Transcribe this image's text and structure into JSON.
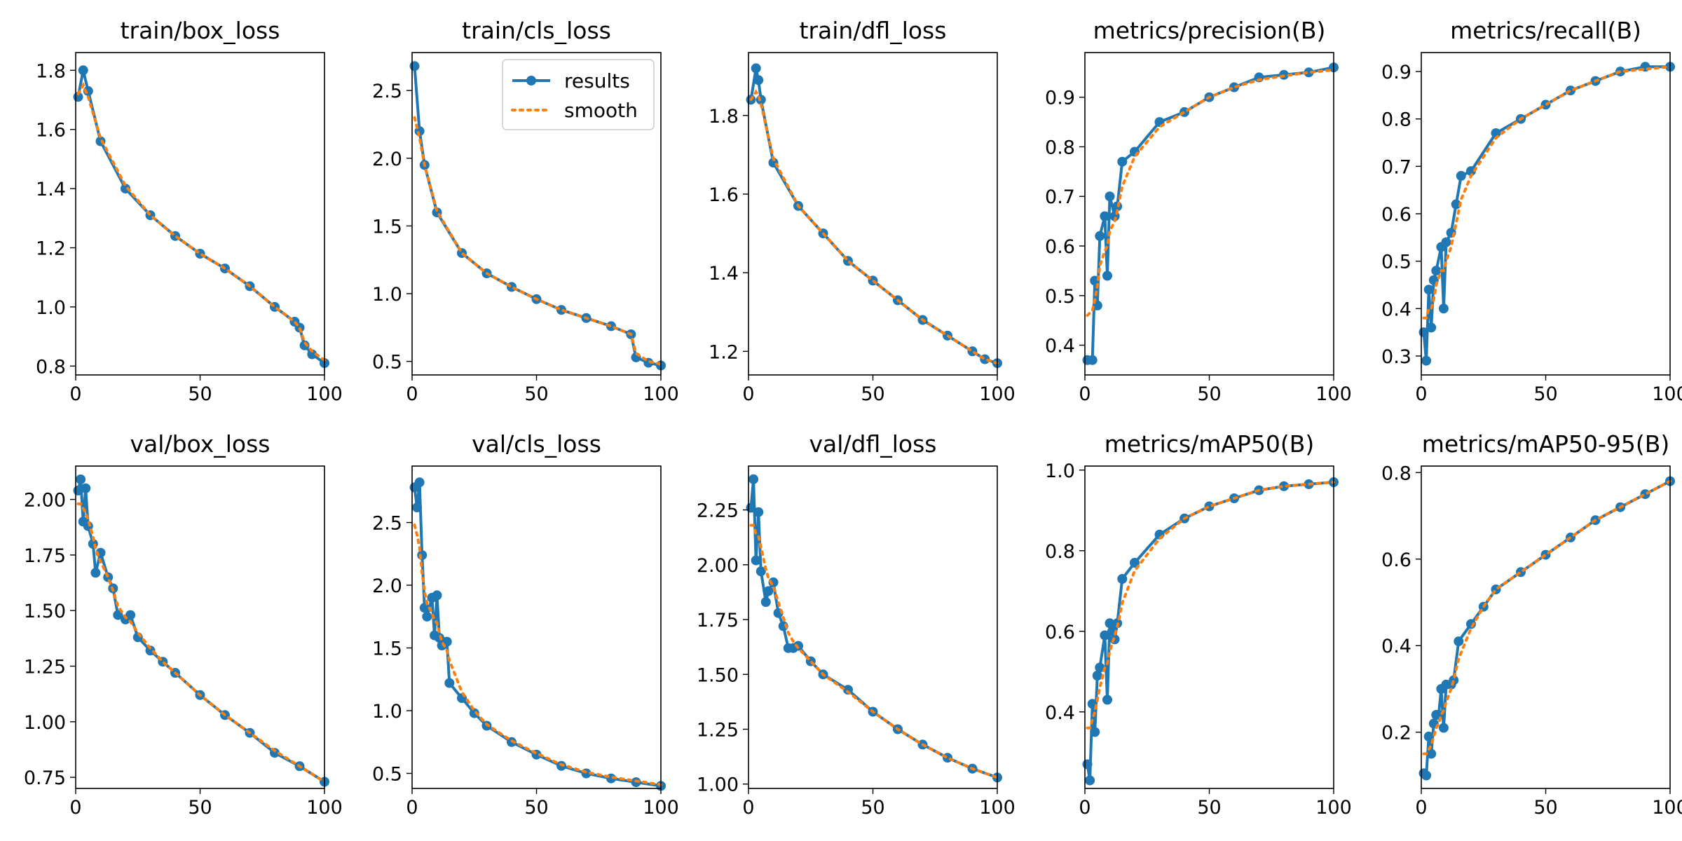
{
  "colors": {
    "results": "#1f77b4",
    "smooth": "#ff7f0e"
  },
  "legend": {
    "results_label": "results",
    "smooth_label": "smooth",
    "panel_index": 1,
    "placement": "upper right"
  },
  "chart_data": [
    {
      "type": "line",
      "title": "train/box_loss",
      "xlabel": "",
      "ylabel": "",
      "xlim": [
        0,
        100
      ],
      "ylim": [
        0.77,
        1.86
      ],
      "xticks": [
        0,
        50,
        100
      ],
      "xtick_labels": [
        "0",
        "50",
        "100"
      ],
      "yticks": [
        0.8,
        1.0,
        1.2,
        1.4,
        1.6,
        1.8
      ],
      "ytick_labels": [
        "0.8",
        "1.0",
        "1.2",
        "1.4",
        "1.6",
        "1.8"
      ],
      "x": [
        1,
        3,
        5,
        10,
        20,
        30,
        40,
        50,
        60,
        70,
        80,
        88,
        90,
        92,
        95,
        100
      ],
      "series": [
        {
          "name": "results",
          "values": [
            1.71,
            1.8,
            1.73,
            1.56,
            1.4,
            1.31,
            1.24,
            1.18,
            1.13,
            1.07,
            1.0,
            0.95,
            0.93,
            0.87,
            0.84,
            0.81
          ]
        },
        {
          "name": "smooth",
          "values": [
            1.72,
            1.75,
            1.71,
            1.57,
            1.41,
            1.31,
            1.24,
            1.18,
            1.13,
            1.07,
            1.0,
            0.95,
            0.93,
            0.88,
            0.85,
            0.82
          ]
        }
      ]
    },
    {
      "type": "line",
      "title": "train/cls_loss",
      "xlabel": "",
      "ylabel": "",
      "xlim": [
        0,
        100
      ],
      "ylim": [
        0.4,
        2.78
      ],
      "xticks": [
        0,
        50,
        100
      ],
      "xtick_labels": [
        "0",
        "50",
        "100"
      ],
      "yticks": [
        0.5,
        1.0,
        1.5,
        2.0,
        2.5
      ],
      "ytick_labels": [
        "0.5",
        "1.0",
        "1.5",
        "2.0",
        "2.5"
      ],
      "x": [
        1,
        3,
        5,
        10,
        20,
        30,
        40,
        50,
        60,
        70,
        80,
        88,
        90,
        95,
        100
      ],
      "series": [
        {
          "name": "results",
          "values": [
            2.68,
            2.2,
            1.95,
            1.6,
            1.3,
            1.15,
            1.05,
            0.96,
            0.88,
            0.82,
            0.76,
            0.7,
            0.53,
            0.49,
            0.47
          ]
        },
        {
          "name": "smooth",
          "values": [
            2.3,
            2.15,
            1.95,
            1.61,
            1.3,
            1.15,
            1.05,
            0.96,
            0.88,
            0.82,
            0.76,
            0.7,
            0.56,
            0.5,
            0.48
          ]
        }
      ]
    },
    {
      "type": "line",
      "title": "train/dfl_loss",
      "xlabel": "",
      "ylabel": "",
      "xlim": [
        0,
        100
      ],
      "ylim": [
        1.14,
        1.96
      ],
      "xticks": [
        0,
        50,
        100
      ],
      "xtick_labels": [
        "0",
        "50",
        "100"
      ],
      "yticks": [
        1.2,
        1.4,
        1.6,
        1.8
      ],
      "ytick_labels": [
        "1.2",
        "1.4",
        "1.6",
        "1.8"
      ],
      "x": [
        1,
        3,
        4,
        5,
        10,
        20,
        30,
        40,
        50,
        60,
        70,
        80,
        90,
        95,
        100
      ],
      "series": [
        {
          "name": "results",
          "values": [
            1.84,
            1.92,
            1.89,
            1.84,
            1.68,
            1.57,
            1.5,
            1.43,
            1.38,
            1.33,
            1.28,
            1.24,
            1.2,
            1.18,
            1.17
          ]
        },
        {
          "name": "smooth",
          "values": [
            1.84,
            1.86,
            1.85,
            1.83,
            1.69,
            1.57,
            1.5,
            1.43,
            1.38,
            1.33,
            1.28,
            1.24,
            1.2,
            1.18,
            1.17
          ]
        }
      ]
    },
    {
      "type": "line",
      "title": "metrics/precision(B)",
      "xlabel": "",
      "ylabel": "",
      "xlim": [
        0,
        100
      ],
      "ylim": [
        0.34,
        0.99
      ],
      "xticks": [
        0,
        50,
        100
      ],
      "xtick_labels": [
        "0",
        "50",
        "100"
      ],
      "yticks": [
        0.4,
        0.5,
        0.6,
        0.7,
        0.8,
        0.9
      ],
      "ytick_labels": [
        "0.4",
        "0.5",
        "0.6",
        "0.7",
        "0.8",
        "0.9"
      ],
      "x": [
        1,
        3,
        4,
        5,
        6,
        8,
        9,
        10,
        12,
        13,
        15,
        20,
        30,
        40,
        50,
        60,
        70,
        80,
        90,
        100
      ],
      "series": [
        {
          "name": "results",
          "values": [
            0.37,
            0.37,
            0.53,
            0.48,
            0.62,
            0.66,
            0.54,
            0.7,
            0.66,
            0.68,
            0.77,
            0.79,
            0.85,
            0.87,
            0.9,
            0.92,
            0.94,
            0.945,
            0.95,
            0.96
          ]
        },
        {
          "name": "smooth",
          "values": [
            0.46,
            0.47,
            0.49,
            0.52,
            0.56,
            0.59,
            0.6,
            0.63,
            0.65,
            0.67,
            0.72,
            0.78,
            0.84,
            0.87,
            0.9,
            0.92,
            0.935,
            0.943,
            0.95,
            0.955
          ]
        }
      ]
    },
    {
      "type": "line",
      "title": "metrics/recall(B)",
      "xlabel": "",
      "ylabel": "",
      "xlim": [
        0,
        100
      ],
      "ylim": [
        0.26,
        0.94
      ],
      "xticks": [
        0,
        50,
        100
      ],
      "xtick_labels": [
        "0",
        "50",
        "100"
      ],
      "yticks": [
        0.3,
        0.4,
        0.5,
        0.6,
        0.7,
        0.8,
        0.9
      ],
      "ytick_labels": [
        "0.3",
        "0.4",
        "0.5",
        "0.6",
        "0.7",
        "0.8",
        "0.9"
      ],
      "x": [
        1,
        2,
        3,
        4,
        5,
        6,
        8,
        9,
        10,
        12,
        14,
        16,
        20,
        30,
        40,
        50,
        60,
        70,
        80,
        90,
        100
      ],
      "series": [
        {
          "name": "results",
          "values": [
            0.35,
            0.29,
            0.44,
            0.36,
            0.46,
            0.48,
            0.53,
            0.4,
            0.54,
            0.56,
            0.62,
            0.68,
            0.69,
            0.77,
            0.8,
            0.83,
            0.86,
            0.88,
            0.9,
            0.91,
            0.91
          ]
        },
        {
          "name": "smooth",
          "values": [
            0.38,
            0.38,
            0.4,
            0.4,
            0.42,
            0.45,
            0.48,
            0.48,
            0.5,
            0.53,
            0.58,
            0.63,
            0.68,
            0.76,
            0.8,
            0.83,
            0.86,
            0.88,
            0.9,
            0.905,
            0.91
          ]
        }
      ]
    },
    {
      "type": "line",
      "title": "val/box_loss",
      "xlabel": "",
      "ylabel": "",
      "xlim": [
        0,
        100
      ],
      "ylim": [
        0.7,
        2.15
      ],
      "xticks": [
        0,
        50,
        100
      ],
      "xtick_labels": [
        "0",
        "50",
        "100"
      ],
      "yticks": [
        0.75,
        1.0,
        1.25,
        1.5,
        1.75,
        2.0
      ],
      "ytick_labels": [
        "0.75",
        "1.00",
        "1.25",
        "1.50",
        "1.75",
        "2.00"
      ],
      "x": [
        1,
        2,
        3,
        4,
        5,
        7,
        8,
        10,
        13,
        15,
        17,
        20,
        22,
        25,
        30,
        35,
        40,
        50,
        60,
        70,
        80,
        90,
        100
      ],
      "series": [
        {
          "name": "results",
          "values": [
            2.04,
            2.09,
            1.9,
            2.05,
            1.88,
            1.8,
            1.67,
            1.76,
            1.65,
            1.6,
            1.48,
            1.46,
            1.48,
            1.38,
            1.32,
            1.27,
            1.22,
            1.12,
            1.03,
            0.95,
            0.86,
            0.8,
            0.73
          ]
        },
        {
          "name": "smooth",
          "values": [
            1.98,
            1.98,
            1.96,
            1.94,
            1.91,
            1.83,
            1.78,
            1.72,
            1.65,
            1.59,
            1.52,
            1.47,
            1.45,
            1.4,
            1.33,
            1.27,
            1.22,
            1.12,
            1.03,
            0.95,
            0.87,
            0.8,
            0.73
          ]
        }
      ]
    },
    {
      "type": "line",
      "title": "val/cls_loss",
      "xlabel": "",
      "ylabel": "",
      "xlim": [
        0,
        100
      ],
      "ylim": [
        0.38,
        2.95
      ],
      "xticks": [
        0,
        50,
        100
      ],
      "xtick_labels": [
        "0",
        "50",
        "100"
      ],
      "yticks": [
        0.5,
        1.0,
        1.5,
        2.0,
        2.5
      ],
      "ytick_labels": [
        "0.5",
        "1.0",
        "1.5",
        "2.0",
        "2.5"
      ],
      "x": [
        1,
        2,
        3,
        4,
        5,
        6,
        8,
        9,
        10,
        11,
        12,
        14,
        15,
        20,
        25,
        30,
        40,
        50,
        60,
        70,
        80,
        90,
        100
      ],
      "series": [
        {
          "name": "results",
          "values": [
            2.78,
            2.62,
            2.82,
            2.24,
            1.82,
            1.75,
            1.9,
            1.6,
            1.92,
            1.58,
            1.52,
            1.55,
            1.22,
            1.1,
            0.98,
            0.88,
            0.75,
            0.65,
            0.56,
            0.5,
            0.46,
            0.43,
            0.4
          ]
        },
        {
          "name": "smooth",
          "values": [
            2.48,
            2.4,
            2.3,
            2.1,
            1.95,
            1.85,
            1.78,
            1.72,
            1.7,
            1.62,
            1.55,
            1.48,
            1.4,
            1.15,
            1.0,
            0.89,
            0.76,
            0.66,
            0.57,
            0.51,
            0.47,
            0.44,
            0.41
          ]
        }
      ]
    },
    {
      "type": "line",
      "title": "val/dfl_loss",
      "xlabel": "",
      "ylabel": "",
      "xlim": [
        0,
        100
      ],
      "ylim": [
        0.98,
        2.45
      ],
      "xticks": [
        0,
        50,
        100
      ],
      "xtick_labels": [
        "0",
        "50",
        "100"
      ],
      "yticks": [
        1.0,
        1.25,
        1.5,
        1.75,
        2.0,
        2.25
      ],
      "ytick_labels": [
        "1.00",
        "1.25",
        "1.50",
        "1.75",
        "2.00",
        "2.25"
      ],
      "x": [
        1,
        2,
        3,
        4,
        5,
        7,
        8,
        10,
        12,
        14,
        16,
        18,
        20,
        25,
        30,
        40,
        50,
        60,
        70,
        80,
        90,
        100
      ],
      "series": [
        {
          "name": "results",
          "values": [
            2.26,
            2.39,
            2.02,
            2.24,
            1.97,
            1.83,
            1.88,
            1.92,
            1.78,
            1.72,
            1.62,
            1.62,
            1.63,
            1.56,
            1.5,
            1.43,
            1.33,
            1.25,
            1.18,
            1.12,
            1.07,
            1.03
          ]
        },
        {
          "name": "smooth",
          "values": [
            2.18,
            2.18,
            2.14,
            2.13,
            2.08,
            1.98,
            1.94,
            1.9,
            1.83,
            1.76,
            1.69,
            1.65,
            1.62,
            1.56,
            1.5,
            1.42,
            1.33,
            1.25,
            1.18,
            1.12,
            1.07,
            1.03
          ]
        }
      ]
    },
    {
      "type": "line",
      "title": "metrics/mAP50(B)",
      "xlabel": "",
      "ylabel": "",
      "xlim": [
        0,
        100
      ],
      "ylim": [
        0.21,
        1.01
      ],
      "xticks": [
        0,
        50,
        100
      ],
      "xtick_labels": [
        "0",
        "50",
        "100"
      ],
      "yticks": [
        0.4,
        0.6,
        0.8,
        1.0
      ],
      "ytick_labels": [
        "0.4",
        "0.6",
        "0.8",
        "1.0"
      ],
      "x": [
        1,
        2,
        3,
        4,
        5,
        6,
        8,
        9,
        10,
        11,
        12,
        13,
        15,
        20,
        30,
        40,
        50,
        60,
        70,
        80,
        90,
        100
      ],
      "series": [
        {
          "name": "results",
          "values": [
            0.27,
            0.23,
            0.42,
            0.35,
            0.49,
            0.51,
            0.59,
            0.43,
            0.62,
            0.6,
            0.58,
            0.62,
            0.73,
            0.77,
            0.84,
            0.88,
            0.91,
            0.93,
            0.95,
            0.96,
            0.965,
            0.97
          ]
        },
        {
          "name": "smooth",
          "values": [
            0.36,
            0.36,
            0.38,
            0.4,
            0.43,
            0.46,
            0.51,
            0.52,
            0.55,
            0.57,
            0.59,
            0.61,
            0.67,
            0.75,
            0.83,
            0.88,
            0.91,
            0.93,
            0.95,
            0.96,
            0.965,
            0.97
          ]
        }
      ]
    },
    {
      "type": "line",
      "title": "metrics/mAP50-95(B)",
      "xlabel": "",
      "ylabel": "",
      "xlim": [
        0,
        100
      ],
      "ylim": [
        0.07,
        0.815
      ],
      "xticks": [
        0,
        50,
        100
      ],
      "xtick_labels": [
        "0",
        "50",
        "100"
      ],
      "yticks": [
        0.2,
        0.4,
        0.6,
        0.8
      ],
      "ytick_labels": [
        "0.2",
        "0.4",
        "0.6",
        "0.8"
      ],
      "x": [
        1,
        2,
        3,
        4,
        5,
        6,
        7,
        8,
        9,
        10,
        12,
        13,
        15,
        20,
        25,
        30,
        40,
        50,
        60,
        70,
        80,
        90,
        100
      ],
      "series": [
        {
          "name": "results",
          "values": [
            0.105,
            0.1,
            0.19,
            0.15,
            0.22,
            0.24,
            0.24,
            0.3,
            0.21,
            0.31,
            0.31,
            0.32,
            0.41,
            0.45,
            0.49,
            0.53,
            0.57,
            0.61,
            0.65,
            0.69,
            0.72,
            0.75,
            0.78
          ]
        },
        {
          "name": "smooth",
          "values": [
            0.15,
            0.15,
            0.16,
            0.17,
            0.19,
            0.21,
            0.22,
            0.24,
            0.25,
            0.27,
            0.3,
            0.32,
            0.37,
            0.44,
            0.49,
            0.53,
            0.57,
            0.61,
            0.65,
            0.69,
            0.72,
            0.75,
            0.78
          ]
        }
      ]
    }
  ]
}
